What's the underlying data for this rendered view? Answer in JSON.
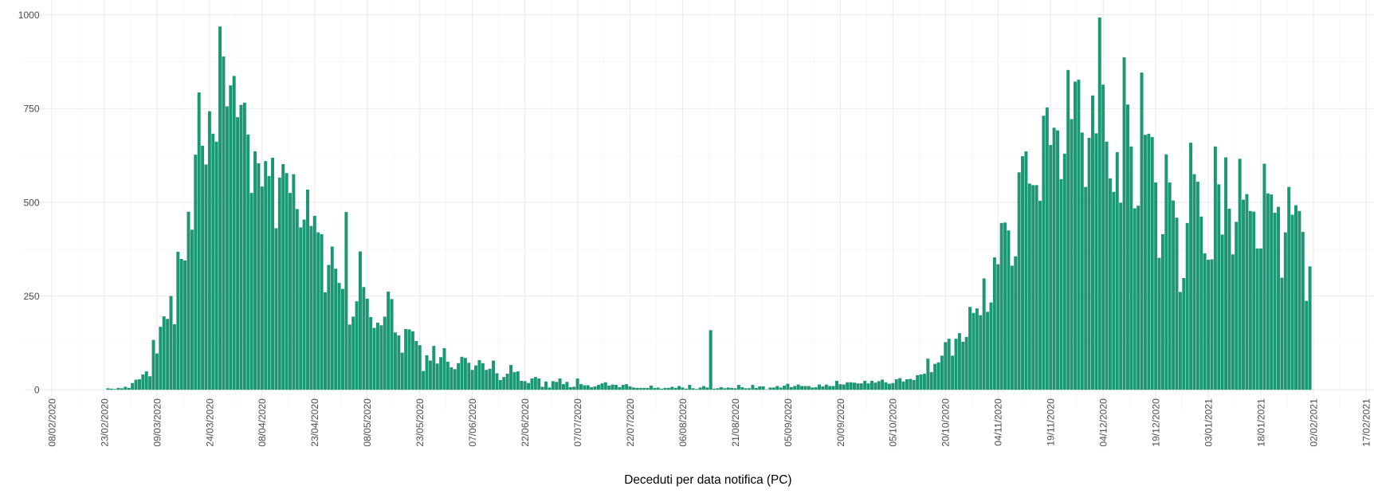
{
  "chart_data": {
    "type": "bar",
    "x_title": "Deceduti per data notifica (PC)",
    "color": "#1b9773",
    "grid": true,
    "x": [
      "24/02/2020",
      "25/02/2020",
      "26/02/2020",
      "27/02/2020",
      "28/02/2020",
      "29/02/2020",
      "01/03/2020",
      "02/03/2020",
      "03/03/2020",
      "04/03/2020",
      "05/03/2020",
      "06/03/2020",
      "07/03/2020",
      "08/03/2020",
      "09/03/2020",
      "10/03/2020",
      "11/03/2020",
      "12/03/2020",
      "13/03/2020",
      "14/03/2020",
      "15/03/2020",
      "16/03/2020",
      "17/03/2020",
      "18/03/2020",
      "19/03/2020",
      "20/03/2020",
      "21/03/2020",
      "22/03/2020",
      "23/03/2020",
      "24/03/2020",
      "25/03/2020",
      "26/03/2020",
      "27/03/2020",
      "28/03/2020",
      "29/03/2020",
      "30/03/2020",
      "31/03/2020",
      "01/04/2020",
      "02/04/2020",
      "03/04/2020",
      "04/04/2020",
      "05/04/2020",
      "06/04/2020",
      "07/04/2020",
      "08/04/2020",
      "09/04/2020",
      "10/04/2020",
      "11/04/2020",
      "12/04/2020",
      "13/04/2020",
      "14/04/2020",
      "15/04/2020",
      "16/04/2020",
      "17/04/2020",
      "18/04/2020",
      "19/04/2020",
      "20/04/2020",
      "21/04/2020",
      "22/04/2020",
      "23/04/2020",
      "24/04/2020",
      "25/04/2020",
      "26/04/2020",
      "27/04/2020",
      "28/04/2020",
      "29/04/2020",
      "30/04/2020",
      "01/05/2020",
      "02/05/2020",
      "03/05/2020",
      "04/05/2020",
      "05/05/2020",
      "06/05/2020",
      "07/05/2020",
      "08/05/2020",
      "09/05/2020",
      "10/05/2020",
      "11/05/2020",
      "12/05/2020",
      "13/05/2020",
      "14/05/2020",
      "15/05/2020",
      "16/05/2020",
      "17/05/2020",
      "18/05/2020",
      "19/05/2020",
      "20/05/2020",
      "21/05/2020",
      "22/05/2020",
      "23/05/2020",
      "24/05/2020",
      "25/05/2020",
      "26/05/2020",
      "27/05/2020",
      "28/05/2020",
      "29/05/2020",
      "30/05/2020",
      "31/05/2020",
      "01/06/2020",
      "02/06/2020",
      "03/06/2020",
      "04/06/2020",
      "05/06/2020",
      "06/06/2020",
      "07/06/2020",
      "08/06/2020",
      "09/06/2020",
      "10/06/2020",
      "11/06/2020",
      "12/06/2020",
      "13/06/2020",
      "14/06/2020",
      "15/06/2020",
      "16/06/2020",
      "17/06/2020",
      "18/06/2020",
      "19/06/2020",
      "20/06/2020",
      "21/06/2020",
      "22/06/2020",
      "23/06/2020",
      "24/06/2020",
      "25/06/2020",
      "26/06/2020",
      "27/06/2020",
      "28/06/2020",
      "29/06/2020",
      "30/06/2020",
      "01/07/2020",
      "02/07/2020",
      "03/07/2020",
      "04/07/2020",
      "05/07/2020",
      "06/07/2020",
      "07/07/2020",
      "08/07/2020",
      "09/07/2020",
      "10/07/2020",
      "11/07/2020",
      "12/07/2020",
      "13/07/2020",
      "14/07/2020",
      "15/07/2020",
      "16/07/2020",
      "17/07/2020",
      "18/07/2020",
      "19/07/2020",
      "20/07/2020",
      "21/07/2020",
      "22/07/2020",
      "23/07/2020",
      "24/07/2020",
      "25/07/2020",
      "26/07/2020",
      "27/07/2020",
      "28/07/2020",
      "29/07/2020",
      "30/07/2020",
      "31/07/2020",
      "01/08/2020",
      "02/08/2020",
      "03/08/2020",
      "04/08/2020",
      "05/08/2020",
      "06/08/2020",
      "07/08/2020",
      "08/08/2020",
      "09/08/2020",
      "10/08/2020",
      "11/08/2020",
      "12/08/2020",
      "13/08/2020",
      "14/08/2020",
      "15/08/2020",
      "16/08/2020",
      "17/08/2020",
      "18/08/2020",
      "19/08/2020",
      "20/08/2020",
      "21/08/2020",
      "22/08/2020",
      "23/08/2020",
      "24/08/2020",
      "25/08/2020",
      "26/08/2020",
      "27/08/2020",
      "28/08/2020",
      "29/08/2020",
      "30/08/2020",
      "31/08/2020",
      "01/09/2020",
      "02/09/2020",
      "03/09/2020",
      "04/09/2020",
      "05/09/2020",
      "06/09/2020",
      "07/09/2020",
      "08/09/2020",
      "09/09/2020",
      "10/09/2020",
      "11/09/2020",
      "12/09/2020",
      "13/09/2020",
      "14/09/2020",
      "15/09/2020",
      "16/09/2020",
      "17/09/2020",
      "18/09/2020",
      "19/09/2020",
      "20/09/2020",
      "21/09/2020",
      "22/09/2020",
      "23/09/2020",
      "24/09/2020",
      "25/09/2020",
      "26/09/2020",
      "27/09/2020",
      "28/09/2020",
      "29/09/2020",
      "30/09/2020",
      "01/10/2020",
      "02/10/2020",
      "03/10/2020",
      "04/10/2020",
      "05/10/2020",
      "06/10/2020",
      "07/10/2020",
      "08/10/2020",
      "09/10/2020",
      "10/10/2020",
      "11/10/2020",
      "12/10/2020",
      "13/10/2020",
      "14/10/2020",
      "15/10/2020",
      "16/10/2020",
      "17/10/2020",
      "18/10/2020",
      "19/10/2020",
      "20/10/2020",
      "21/10/2020",
      "22/10/2020",
      "23/10/2020",
      "24/10/2020",
      "25/10/2020",
      "26/10/2020",
      "27/10/2020",
      "28/10/2020",
      "29/10/2020",
      "30/10/2020",
      "31/10/2020",
      "01/11/2020",
      "02/11/2020",
      "03/11/2020",
      "04/11/2020",
      "05/11/2020",
      "06/11/2020",
      "07/11/2020",
      "08/11/2020",
      "09/11/2020",
      "10/11/2020",
      "11/11/2020",
      "12/11/2020",
      "13/11/2020",
      "14/11/2020",
      "15/11/2020",
      "16/11/2020",
      "17/11/2020",
      "18/11/2020",
      "19/11/2020",
      "20/11/2020",
      "21/11/2020",
      "22/11/2020",
      "23/11/2020",
      "24/11/2020",
      "25/11/2020",
      "26/11/2020",
      "27/11/2020",
      "28/11/2020",
      "29/11/2020",
      "30/11/2020",
      "01/12/2020",
      "02/12/2020",
      "03/12/2020",
      "04/12/2020",
      "05/12/2020",
      "06/12/2020",
      "07/12/2020",
      "08/12/2020",
      "09/12/2020",
      "10/12/2020",
      "11/12/2020",
      "12/12/2020",
      "13/12/2020",
      "14/12/2020",
      "15/12/2020",
      "16/12/2020",
      "17/12/2020",
      "18/12/2020",
      "19/12/2020",
      "20/12/2020",
      "21/12/2020",
      "22/12/2020",
      "23/12/2020",
      "24/12/2020",
      "25/12/2020",
      "26/12/2020",
      "27/12/2020",
      "28/12/2020",
      "29/12/2020",
      "30/12/2020",
      "31/12/2020",
      "01/01/2021",
      "02/01/2021",
      "03/01/2021",
      "04/01/2021",
      "05/01/2021",
      "06/01/2021",
      "07/01/2021",
      "08/01/2021",
      "09/01/2021",
      "10/01/2021",
      "11/01/2021",
      "12/01/2021",
      "13/01/2021",
      "14/01/2021",
      "15/01/2021",
      "16/01/2021",
      "17/01/2021",
      "18/01/2021",
      "19/01/2021",
      "20/01/2021",
      "21/01/2021",
      "22/01/2021",
      "23/01/2021",
      "24/01/2021",
      "25/01/2021",
      "26/01/2021",
      "27/01/2021",
      "28/01/2021",
      "29/01/2021",
      "30/01/2021",
      "31/01/2021",
      "01/02/2021"
    ],
    "values": [
      4,
      3,
      2,
      5,
      4,
      8,
      5,
      18,
      27,
      28,
      41,
      49,
      36,
      133,
      97,
      168,
      196,
      189,
      250,
      175,
      368,
      349,
      345,
      475,
      427,
      627,
      793,
      651,
      601,
      743,
      683,
      662,
      969,
      889,
      756,
      812,
      837,
      727,
      760,
      766,
      681,
      525,
      636,
      604,
      542,
      610,
      570,
      619,
      431,
      566,
      602,
      578,
      525,
      575,
      482,
      433,
      454,
      534,
      437,
      464,
      420,
      415,
      260,
      333,
      382,
      323,
      285,
      269,
      474,
      174,
      195,
      236,
      369,
      274,
      243,
      194,
      165,
      179,
      172,
      195,
      262,
      242,
      153,
      145,
      99,
      162,
      161,
      156,
      130,
      119,
      50,
      92,
      78,
      117,
      70,
      87,
      111,
      75,
      60,
      55,
      71,
      88,
      85,
      72,
      53,
      65,
      79,
      71,
      53,
      56,
      78,
      44,
      26,
      34,
      43,
      66,
      47,
      49,
      24,
      23,
      18,
      30,
      34,
      30,
      8,
      22,
      6,
      23,
      21,
      30,
      15,
      21,
      7,
      8,
      30,
      15,
      12,
      12,
      7,
      9,
      13,
      17,
      20,
      11,
      14,
      13,
      7,
      13,
      15,
      9,
      6,
      5,
      5,
      5,
      5,
      11,
      5,
      6,
      3,
      5,
      5,
      8,
      5,
      10,
      6,
      3,
      13,
      4,
      2,
      6,
      10,
      6,
      159,
      3,
      4,
      7,
      4,
      6,
      5,
      4,
      13,
      7,
      4,
      4,
      13,
      5,
      9,
      9,
      1,
      6,
      6,
      10,
      6,
      11,
      16,
      7,
      10,
      14,
      10,
      10,
      10,
      6,
      7,
      14,
      9,
      14,
      10,
      10,
      24,
      15,
      14,
      20,
      20,
      19,
      17,
      17,
      24,
      17,
      24,
      19,
      23,
      27,
      20,
      16,
      18,
      28,
      31,
      22,
      28,
      29,
      26,
      39,
      41,
      43,
      83,
      47,
      69,
      73,
      91,
      127,
      136,
      91,
      136,
      151,
      128,
      141,
      221,
      205,
      217,
      199,
      297,
      208,
      233,
      353,
      335,
      445,
      446,
      425,
      331,
      356,
      580,
      623,
      636,
      550,
      546,
      546,
      504,
      731,
      753,
      653,
      699,
      692,
      562,
      630,
      853,
      722,
      822,
      827,
      686,
      541,
      672,
      785,
      684,
      993,
      814,
      662,
      564,
      528,
      634,
      499,
      887,
      761,
      649,
      484,
      491,
      846,
      680,
      683,
      674,
      553,
      352,
      415,
      628,
      553,
      505,
      459,
      261,
      298,
      445,
      659,
      575,
      555,
      462,
      364,
      347,
      348,
      649,
      548,
      414,
      620,
      483,
      361,
      448,
      616,
      507,
      522,
      477,
      475,
      377,
      377,
      603,
      524,
      521,
      472,
      488,
      299,
      420,
      541,
      467,
      492,
      477,
      421,
      237,
      329
    ],
    "xlim": [
      "31/01/2020",
      "20/02/2021"
    ],
    "xticks": [
      "08/02/2020",
      "23/02/2020",
      "09/03/2020",
      "24/03/2020",
      "08/04/2020",
      "23/04/2020",
      "08/05/2020",
      "23/05/2020",
      "07/06/2020",
      "22/06/2020",
      "07/07/2020",
      "22/07/2020",
      "06/08/2020",
      "21/08/2020",
      "05/09/2020",
      "20/09/2020",
      "05/10/2020",
      "20/10/2020",
      "04/11/2020",
      "19/11/2020",
      "04/12/2020",
      "19/12/2020",
      "03/01/2021",
      "18/01/2021",
      "02/02/2021",
      "17/02/2021"
    ],
    "ylim": [
      0,
      1000
    ],
    "yticks": [
      0,
      250,
      500,
      750,
      1000
    ]
  }
}
